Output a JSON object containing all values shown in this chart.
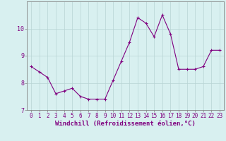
{
  "x": [
    0,
    1,
    2,
    3,
    4,
    5,
    6,
    7,
    8,
    9,
    10,
    11,
    12,
    13,
    14,
    15,
    16,
    17,
    18,
    19,
    20,
    21,
    22,
    23
  ],
  "y": [
    8.6,
    8.4,
    8.2,
    7.6,
    7.7,
    7.8,
    7.5,
    7.4,
    7.4,
    7.4,
    8.1,
    8.8,
    9.5,
    10.4,
    10.2,
    9.7,
    10.5,
    9.8,
    8.5,
    8.5,
    8.5,
    8.6,
    9.2,
    9.2
  ],
  "line_color": "#800080",
  "marker": "+",
  "marker_size": 3,
  "marker_lw": 0.8,
  "bg_color": "#d8f0f0",
  "grid_color": "#b8d4d4",
  "xlabel": "Windchill (Refroidissement éolien,°C)",
  "ylim": [
    7.0,
    11.0
  ],
  "xlim_min": -0.5,
  "xlim_max": 23.5,
  "yticks": [
    7,
    8,
    9,
    10
  ],
  "xticks": [
    0,
    1,
    2,
    3,
    4,
    5,
    6,
    7,
    8,
    9,
    10,
    11,
    12,
    13,
    14,
    15,
    16,
    17,
    18,
    19,
    20,
    21,
    22,
    23
  ],
  "tick_fontsize": 5.5,
  "xlabel_fontsize": 6.5,
  "label_color": "#800080",
  "spine_color": "#808080",
  "line_width": 0.8
}
